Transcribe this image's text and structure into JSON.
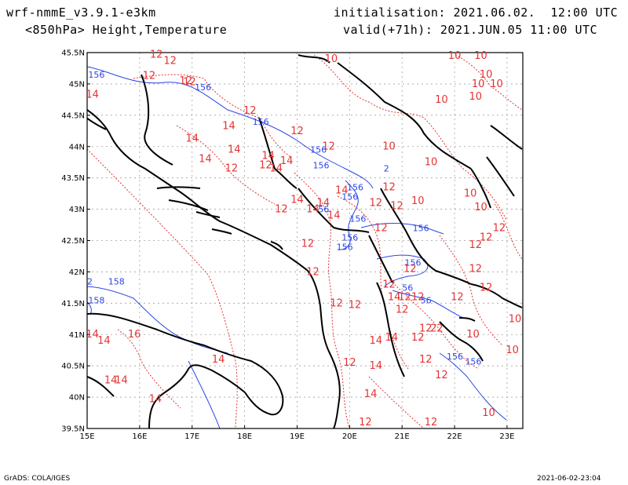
{
  "header": {
    "model": "wrf-nmmE_v3.9.1-e3km",
    "field": "<850hPa> Height,Temperature",
    "init": "initialisation: 2021.06.02.  12:00 UTC",
    "valid": "valid(+71h): 2021.JUN.05 11:00 UTC"
  },
  "footer": {
    "credit": "GrADS: COLA/IGES",
    "timestamp": "2021-06-02-23:04"
  },
  "axes": {
    "lon_labels": [
      "15E",
      "16E",
      "17E",
      "18E",
      "19E",
      "20E",
      "21E",
      "22E",
      "23E"
    ],
    "lat_labels": [
      "45.5N",
      "45N",
      "44.5N",
      "44N",
      "43.5N",
      "43N",
      "42.5N",
      "42N",
      "41.5N",
      "41N",
      "40.5N",
      "40N",
      "39.5N"
    ]
  },
  "colors": {
    "temperature": "#e63232",
    "height": "#2a46e6",
    "coast": "#000000",
    "grid": "#a0a0a0"
  },
  "map": {
    "extent": {
      "lon": [
        15,
        23.3
      ],
      "lat": [
        39.5,
        45.5
      ]
    },
    "temp_labels": [
      {
        "t": "12",
        "lon": 16.32,
        "lat": 45.42
      },
      {
        "t": "12",
        "lon": 16.58,
        "lat": 45.32
      },
      {
        "t": "12",
        "lon": 16.18,
        "lat": 45.08
      },
      {
        "t": "12",
        "lon": 16.88,
        "lat": 45.0
      },
      {
        "t": "12",
        "lon": 16.95,
        "lat": 44.98
      },
      {
        "t": "14",
        "lon": 15.1,
        "lat": 44.78
      },
      {
        "t": "12",
        "lon": 18.1,
        "lat": 44.52
      },
      {
        "t": "14",
        "lon": 17.7,
        "lat": 44.28
      },
      {
        "t": "14",
        "lon": 17.0,
        "lat": 44.08
      },
      {
        "t": "14",
        "lon": 17.25,
        "lat": 43.75
      },
      {
        "t": "14",
        "lon": 17.8,
        "lat": 43.9
      },
      {
        "t": "12",
        "lon": 17.75,
        "lat": 43.6
      },
      {
        "t": "14",
        "lon": 18.45,
        "lat": 43.8
      },
      {
        "t": "12",
        "lon": 18.4,
        "lat": 43.65
      },
      {
        "t": "14",
        "lon": 18.6,
        "lat": 43.6
      },
      {
        "t": "14",
        "lon": 18.8,
        "lat": 43.72
      },
      {
        "t": "12",
        "lon": 19.0,
        "lat": 44.2
      },
      {
        "t": "12",
        "lon": 19.6,
        "lat": 43.95
      },
      {
        "t": "14",
        "lon": 19.0,
        "lat": 43.1
      },
      {
        "t": "14",
        "lon": 19.3,
        "lat": 42.95
      },
      {
        "t": "14",
        "lon": 19.5,
        "lat": 43.05
      },
      {
        "t": "14",
        "lon": 19.7,
        "lat": 42.85
      },
      {
        "t": "14",
        "lon": 19.85,
        "lat": 43.25
      },
      {
        "t": "12",
        "lon": 18.7,
        "lat": 42.95
      },
      {
        "t": "12",
        "lon": 19.2,
        "lat": 42.4
      },
      {
        "t": "12",
        "lon": 19.3,
        "lat": 41.95
      },
      {
        "t": "12",
        "lon": 20.75,
        "lat": 43.3
      },
      {
        "t": "12",
        "lon": 20.5,
        "lat": 43.05
      },
      {
        "t": "12",
        "lon": 20.9,
        "lat": 43.0
      },
      {
        "t": "12",
        "lon": 20.6,
        "lat": 42.65
      },
      {
        "t": "12",
        "lon": 19.75,
        "lat": 41.45
      },
      {
        "t": "12",
        "lon": 20.1,
        "lat": 41.42
      },
      {
        "t": "12",
        "lon": 21.15,
        "lat": 42.0
      },
      {
        "t": "12",
        "lon": 20.75,
        "lat": 41.75
      },
      {
        "t": "14",
        "lon": 20.85,
        "lat": 41.55
      },
      {
        "t": "12",
        "lon": 21.05,
        "lat": 41.55
      },
      {
        "t": "12",
        "lon": 21.3,
        "lat": 41.55
      },
      {
        "t": "12",
        "lon": 21.45,
        "lat": 41.05
      },
      {
        "t": "2",
        "lon": 21.6,
        "lat": 41.05
      },
      {
        "t": "2",
        "lon": 21.72,
        "lat": 41.05
      },
      {
        "t": "12",
        "lon": 21.0,
        "lat": 41.35
      },
      {
        "t": "14",
        "lon": 20.5,
        "lat": 40.85
      },
      {
        "t": "14",
        "lon": 20.8,
        "lat": 40.9
      },
      {
        "t": "12",
        "lon": 21.3,
        "lat": 40.9
      },
      {
        "t": "12",
        "lon": 21.45,
        "lat": 40.55
      },
      {
        "t": "12",
        "lon": 20.0,
        "lat": 40.5
      },
      {
        "t": "14",
        "lon": 20.5,
        "lat": 40.45
      },
      {
        "t": "14",
        "lon": 20.4,
        "lat": 40.0
      },
      {
        "t": "12",
        "lon": 21.75,
        "lat": 40.3
      },
      {
        "t": "12",
        "lon": 22.4,
        "lat": 42.38
      },
      {
        "t": "12",
        "lon": 22.6,
        "lat": 42.5
      },
      {
        "t": "12",
        "lon": 22.4,
        "lat": 42.0
      },
      {
        "t": "12",
        "lon": 22.6,
        "lat": 41.7
      },
      {
        "t": "12",
        "lon": 22.05,
        "lat": 41.55
      },
      {
        "t": "12",
        "lon": 22.85,
        "lat": 42.65
      },
      {
        "t": "12",
        "lon": 20.3,
        "lat": 39.55
      },
      {
        "t": "12",
        "lon": 21.55,
        "lat": 39.55
      },
      {
        "t": "10",
        "lon": 19.65,
        "lat": 45.35
      },
      {
        "t": "10",
        "lon": 22.0,
        "lat": 45.4
      },
      {
        "t": "10",
        "lon": 22.5,
        "lat": 45.4
      },
      {
        "t": "10",
        "lon": 22.6,
        "lat": 45.1
      },
      {
        "t": "10",
        "lon": 22.45,
        "lat": 44.95
      },
      {
        "t": "10",
        "lon": 22.8,
        "lat": 44.95
      },
      {
        "t": "10",
        "lon": 22.4,
        "lat": 44.75
      },
      {
        "t": "10",
        "lon": 21.75,
        "lat": 44.7
      },
      {
        "t": "10",
        "lon": 20.75,
        "lat": 43.95
      },
      {
        "t": "10",
        "lon": 21.55,
        "lat": 43.7
      },
      {
        "t": "10",
        "lon": 22.3,
        "lat": 43.2
      },
      {
        "t": "10",
        "lon": 22.5,
        "lat": 42.98
      },
      {
        "t": "10",
        "lon": 21.3,
        "lat": 43.08
      },
      {
        "t": "10",
        "lon": 22.35,
        "lat": 40.95
      },
      {
        "t": "10",
        "lon": 22.65,
        "lat": 39.7
      },
      {
        "t": "10",
        "lon": 23.15,
        "lat": 41.2
      },
      {
        "t": "10",
        "lon": 23.1,
        "lat": 40.7
      },
      {
        "t": "14",
        "lon": 15.1,
        "lat": 40.95
      },
      {
        "t": "14",
        "lon": 15.32,
        "lat": 40.85
      },
      {
        "t": "16",
        "lon": 15.9,
        "lat": 40.95
      },
      {
        "t": "14",
        "lon": 15.45,
        "lat": 40.22
      },
      {
        "t": "14",
        "lon": 15.65,
        "lat": 40.22
      },
      {
        "t": "14",
        "lon": 16.3,
        "lat": 39.92
      },
      {
        "t": "14",
        "lon": 17.5,
        "lat": 40.55
      }
    ],
    "height_labels": [
      {
        "t": "156",
        "lon": 15.02,
        "lat": 45.1
      },
      {
        "t": "156",
        "lon": 17.05,
        "lat": 44.9
      },
      {
        "t": "156",
        "lon": 18.15,
        "lat": 44.35
      },
      {
        "t": "156",
        "lon": 19.25,
        "lat": 43.9
      },
      {
        "t": "156",
        "lon": 19.3,
        "lat": 43.65
      },
      {
        "t": "156",
        "lon": 19.95,
        "lat": 43.3
      },
      {
        "t": "156",
        "lon": 19.85,
        "lat": 43.15
      },
      {
        "t": "56",
        "lon": 19.4,
        "lat": 42.95
      },
      {
        "t": "156",
        "lon": 20.0,
        "lat": 42.8
      },
      {
        "t": "156",
        "lon": 21.2,
        "lat": 42.65
      },
      {
        "t": "156",
        "lon": 19.85,
        "lat": 42.5
      },
      {
        "t": "156",
        "lon": 19.75,
        "lat": 42.35
      },
      {
        "t": "156",
        "lon": 21.05,
        "lat": 42.1
      },
      {
        "t": "56",
        "lon": 21.0,
        "lat": 41.7
      },
      {
        "t": "56",
        "lon": 21.35,
        "lat": 41.5
      },
      {
        "t": "156",
        "lon": 21.85,
        "lat": 40.6
      },
      {
        "t": "156",
        "lon": 22.2,
        "lat": 40.52
      },
      {
        "t": "158",
        "lon": 15.4,
        "lat": 41.8
      },
      {
        "t": "158",
        "lon": 15.02,
        "lat": 41.5
      },
      {
        "t": "2",
        "lon": 15.0,
        "lat": 41.8
      },
      {
        "t": "2",
        "lon": 20.65,
        "lat": 43.6
      }
    ]
  }
}
